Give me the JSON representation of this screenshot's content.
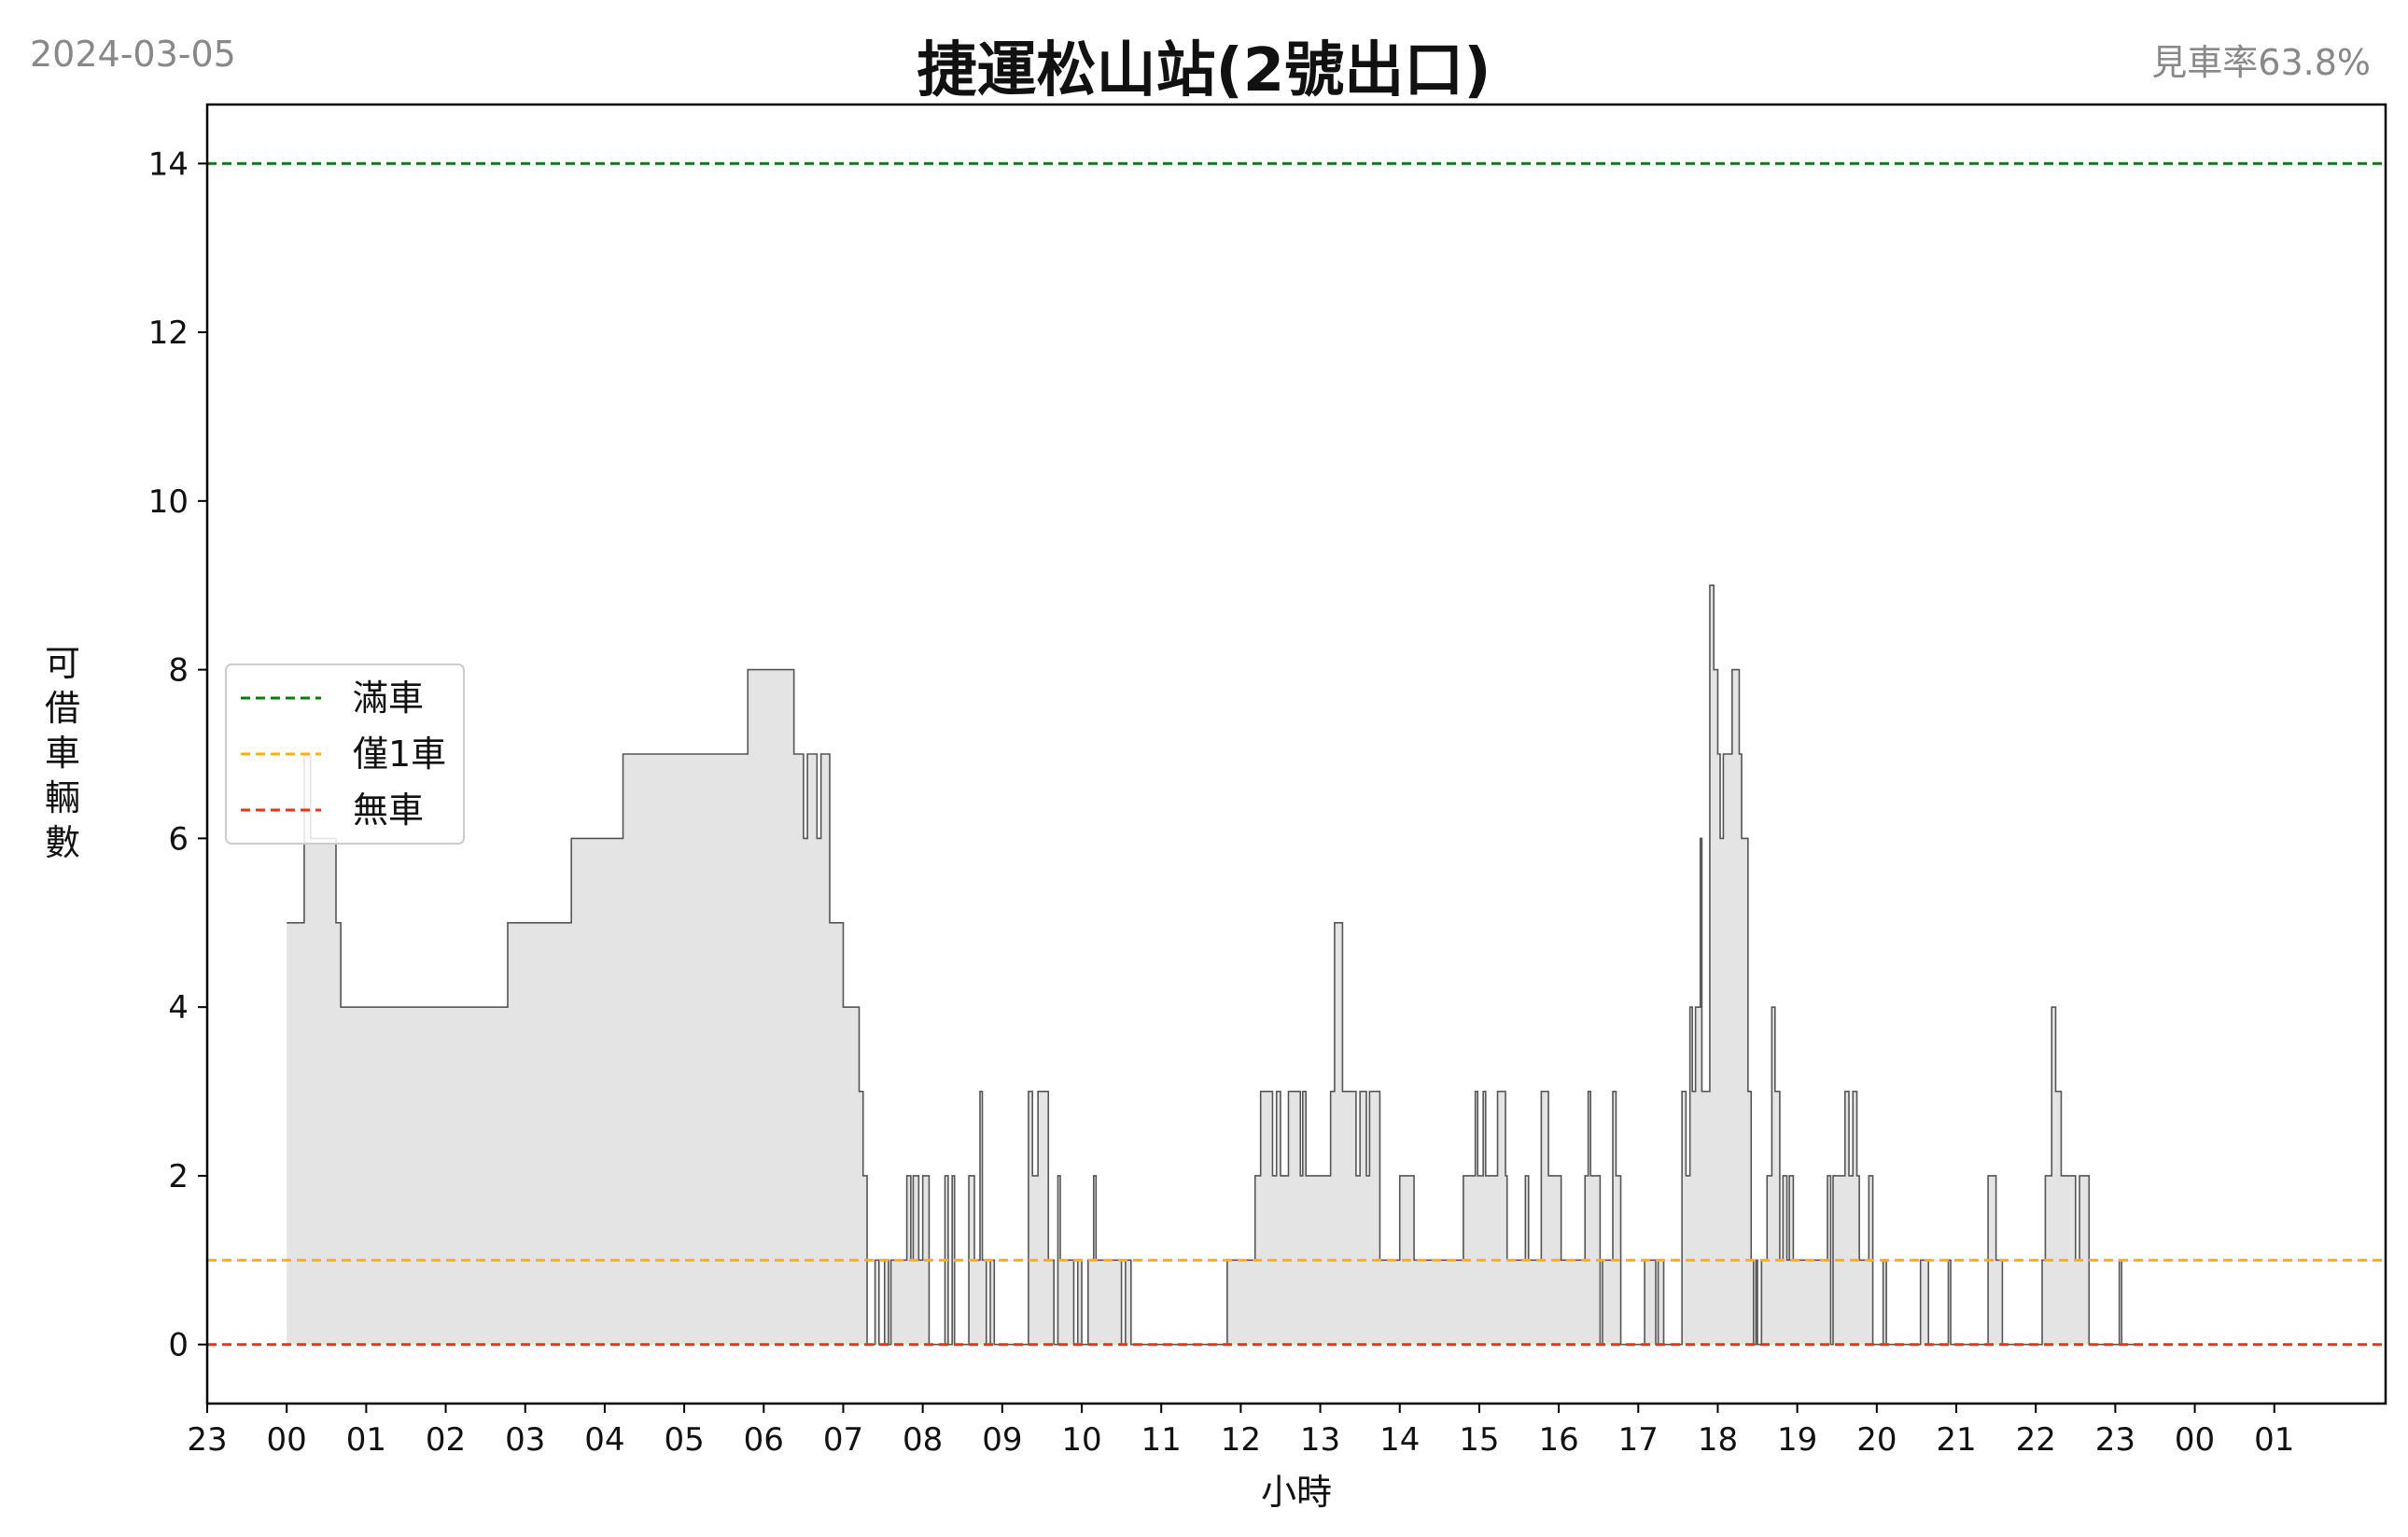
{
  "header": {
    "date": "2024-03-05",
    "title": "捷運松山站(2號出口)",
    "availability": "見車率63.8%"
  },
  "chart_data": {
    "type": "area",
    "title": "捷運松山站(2號出口)",
    "xlabel": "小時",
    "ylabel": "可借車輛數",
    "xlim": [
      -1.0,
      26.4
    ],
    "ylim": [
      -0.7,
      14.7
    ],
    "x_ticks": [
      {
        "pos": -1,
        "label": "23"
      },
      {
        "pos": 0,
        "label": "00"
      },
      {
        "pos": 1,
        "label": "01"
      },
      {
        "pos": 2,
        "label": "02"
      },
      {
        "pos": 3,
        "label": "03"
      },
      {
        "pos": 4,
        "label": "04"
      },
      {
        "pos": 5,
        "label": "05"
      },
      {
        "pos": 6,
        "label": "06"
      },
      {
        "pos": 7,
        "label": "07"
      },
      {
        "pos": 8,
        "label": "08"
      },
      {
        "pos": 9,
        "label": "09"
      },
      {
        "pos": 10,
        "label": "10"
      },
      {
        "pos": 11,
        "label": "11"
      },
      {
        "pos": 12,
        "label": "12"
      },
      {
        "pos": 13,
        "label": "13"
      },
      {
        "pos": 14,
        "label": "14"
      },
      {
        "pos": 15,
        "label": "15"
      },
      {
        "pos": 16,
        "label": "16"
      },
      {
        "pos": 17,
        "label": "17"
      },
      {
        "pos": 18,
        "label": "18"
      },
      {
        "pos": 19,
        "label": "19"
      },
      {
        "pos": 20,
        "label": "20"
      },
      {
        "pos": 21,
        "label": "21"
      },
      {
        "pos": 22,
        "label": "22"
      },
      {
        "pos": 23,
        "label": "23"
      },
      {
        "pos": 24,
        "label": "00"
      },
      {
        "pos": 25,
        "label": "01"
      }
    ],
    "y_ticks": [
      0,
      2,
      4,
      6,
      8,
      10,
      12,
      14
    ],
    "grid": false,
    "legend": {
      "position": "center-left",
      "entries": [
        "滿車",
        "僅1車",
        "無車"
      ]
    },
    "reference_lines": [
      {
        "name": "滿車",
        "value": 14,
        "color": "#008000",
        "style": "dashed"
      },
      {
        "name": "僅1車",
        "value": 1,
        "color": "#FFB300",
        "style": "dashed"
      },
      {
        "name": "無車",
        "value": 0,
        "color": "#E8341C",
        "style": "dashed"
      }
    ],
    "series": [
      {
        "style": "step-area",
        "fill_color": "#e4e4e4",
        "line_color": "#555555",
        "points": [
          [
            0.0,
            5
          ],
          [
            0.15,
            5
          ],
          [
            0.22,
            7
          ],
          [
            0.3,
            6
          ],
          [
            0.55,
            6
          ],
          [
            0.62,
            5
          ],
          [
            0.68,
            4
          ],
          [
            1.5,
            4
          ],
          [
            2.75,
            4
          ],
          [
            2.78,
            5
          ],
          [
            3.55,
            5
          ],
          [
            3.58,
            6
          ],
          [
            4.2,
            6
          ],
          [
            4.23,
            7
          ],
          [
            5.78,
            7
          ],
          [
            5.8,
            8
          ],
          [
            6.35,
            8
          ],
          [
            6.38,
            7
          ],
          [
            6.48,
            7
          ],
          [
            6.5,
            6
          ],
          [
            6.55,
            7
          ],
          [
            6.65,
            7
          ],
          [
            6.67,
            6
          ],
          [
            6.72,
            7
          ],
          [
            6.8,
            7
          ],
          [
            6.83,
            5
          ],
          [
            6.98,
            5
          ],
          [
            7.0,
            4
          ],
          [
            7.15,
            4
          ],
          [
            7.2,
            3
          ],
          [
            7.25,
            2
          ],
          [
            7.3,
            0
          ],
          [
            7.4,
            1
          ],
          [
            7.45,
            0
          ],
          [
            7.52,
            1
          ],
          [
            7.57,
            0
          ],
          [
            7.6,
            1
          ],
          [
            7.75,
            1
          ],
          [
            7.8,
            2
          ],
          [
            7.85,
            1
          ],
          [
            7.88,
            2
          ],
          [
            7.95,
            1
          ],
          [
            8.0,
            2
          ],
          [
            8.05,
            2
          ],
          [
            8.08,
            0
          ],
          [
            8.25,
            0
          ],
          [
            8.28,
            2
          ],
          [
            8.32,
            0
          ],
          [
            8.37,
            2
          ],
          [
            8.4,
            0
          ],
          [
            8.55,
            0
          ],
          [
            8.58,
            2
          ],
          [
            8.62,
            2
          ],
          [
            8.65,
            1
          ],
          [
            8.72,
            3
          ],
          [
            8.75,
            1
          ],
          [
            8.8,
            0
          ],
          [
            8.85,
            1
          ],
          [
            8.9,
            0
          ],
          [
            9.3,
            0
          ],
          [
            9.33,
            3
          ],
          [
            9.38,
            2
          ],
          [
            9.45,
            3
          ],
          [
            9.55,
            3
          ],
          [
            9.58,
            1
          ],
          [
            9.65,
            0
          ],
          [
            9.7,
            2
          ],
          [
            9.73,
            1
          ],
          [
            9.85,
            1
          ],
          [
            9.9,
            0
          ],
          [
            9.95,
            1
          ],
          [
            10.0,
            0
          ],
          [
            10.08,
            1
          ],
          [
            10.15,
            2
          ],
          [
            10.18,
            1
          ],
          [
            10.45,
            1
          ],
          [
            10.5,
            0
          ],
          [
            10.55,
            1
          ],
          [
            10.62,
            0
          ],
          [
            11.8,
            0
          ],
          [
            11.83,
            1
          ],
          [
            12.15,
            1
          ],
          [
            12.18,
            2
          ],
          [
            12.25,
            3
          ],
          [
            12.38,
            3
          ],
          [
            12.4,
            2
          ],
          [
            12.45,
            3
          ],
          [
            12.5,
            2
          ],
          [
            12.55,
            2
          ],
          [
            12.6,
            3
          ],
          [
            12.72,
            3
          ],
          [
            12.75,
            2
          ],
          [
            12.78,
            3
          ],
          [
            12.82,
            2
          ],
          [
            13.1,
            2
          ],
          [
            13.13,
            3
          ],
          [
            13.18,
            5
          ],
          [
            13.25,
            5
          ],
          [
            13.28,
            3
          ],
          [
            13.4,
            3
          ],
          [
            13.45,
            2
          ],
          [
            13.5,
            3
          ],
          [
            13.55,
            3
          ],
          [
            13.58,
            2
          ],
          [
            13.62,
            3
          ],
          [
            13.7,
            3
          ],
          [
            13.75,
            1
          ],
          [
            13.97,
            1
          ],
          [
            14.0,
            2
          ],
          [
            14.15,
            2
          ],
          [
            14.18,
            1
          ],
          [
            14.78,
            1
          ],
          [
            14.8,
            2
          ],
          [
            14.92,
            2
          ],
          [
            14.95,
            3
          ],
          [
            14.98,
            2
          ],
          [
            15.05,
            3
          ],
          [
            15.08,
            2
          ],
          [
            15.2,
            2
          ],
          [
            15.23,
            3
          ],
          [
            15.3,
            3
          ],
          [
            15.33,
            2
          ],
          [
            15.35,
            1
          ],
          [
            15.55,
            1
          ],
          [
            15.58,
            2
          ],
          [
            15.62,
            1
          ],
          [
            15.75,
            1
          ],
          [
            15.78,
            3
          ],
          [
            15.85,
            3
          ],
          [
            15.87,
            2
          ],
          [
            16.0,
            2
          ],
          [
            16.03,
            1
          ],
          [
            16.3,
            1
          ],
          [
            16.33,
            2
          ],
          [
            16.37,
            3
          ],
          [
            16.4,
            2
          ],
          [
            16.5,
            2
          ],
          [
            16.52,
            0
          ],
          [
            16.55,
            1
          ],
          [
            16.65,
            1
          ],
          [
            16.68,
            3
          ],
          [
            16.72,
            2
          ],
          [
            16.78,
            0
          ],
          [
            17.05,
            0
          ],
          [
            17.08,
            1
          ],
          [
            17.2,
            1
          ],
          [
            17.22,
            0
          ],
          [
            17.25,
            1
          ],
          [
            17.28,
            1
          ],
          [
            17.32,
            0
          ],
          [
            17.5,
            0
          ],
          [
            17.55,
            3
          ],
          [
            17.6,
            2
          ],
          [
            17.65,
            4
          ],
          [
            17.68,
            3
          ],
          [
            17.72,
            4
          ],
          [
            17.78,
            6
          ],
          [
            17.8,
            3
          ],
          [
            17.85,
            3
          ],
          [
            17.9,
            9
          ],
          [
            17.95,
            8
          ],
          [
            18.0,
            7
          ],
          [
            18.03,
            6
          ],
          [
            18.07,
            7
          ],
          [
            18.15,
            7
          ],
          [
            18.18,
            8
          ],
          [
            18.25,
            8
          ],
          [
            18.27,
            7
          ],
          [
            18.3,
            6
          ],
          [
            18.38,
            3
          ],
          [
            18.42,
            1
          ],
          [
            18.45,
            0
          ],
          [
            18.48,
            1
          ],
          [
            18.5,
            0
          ],
          [
            18.55,
            1
          ],
          [
            18.62,
            2
          ],
          [
            18.68,
            4
          ],
          [
            18.72,
            3
          ],
          [
            18.78,
            1
          ],
          [
            18.82,
            2
          ],
          [
            18.87,
            1
          ],
          [
            18.9,
            2
          ],
          [
            18.95,
            1
          ],
          [
            19.35,
            1
          ],
          [
            19.38,
            2
          ],
          [
            19.42,
            0
          ],
          [
            19.45,
            2
          ],
          [
            19.55,
            2
          ],
          [
            19.6,
            3
          ],
          [
            19.65,
            2
          ],
          [
            19.7,
            3
          ],
          [
            19.75,
            2
          ],
          [
            19.78,
            1
          ],
          [
            19.85,
            1
          ],
          [
            19.9,
            2
          ],
          [
            19.95,
            0
          ],
          [
            20.05,
            0
          ],
          [
            20.08,
            1
          ],
          [
            20.12,
            0
          ],
          [
            20.5,
            0
          ],
          [
            20.55,
            1
          ],
          [
            20.62,
            1
          ],
          [
            20.65,
            0
          ],
          [
            20.85,
            0
          ],
          [
            20.9,
            1
          ],
          [
            20.93,
            0
          ],
          [
            21.35,
            0
          ],
          [
            21.4,
            2
          ],
          [
            21.48,
            2
          ],
          [
            21.5,
            1
          ],
          [
            21.58,
            0
          ],
          [
            22.05,
            0
          ],
          [
            22.08,
            1
          ],
          [
            22.12,
            2
          ],
          [
            22.2,
            4
          ],
          [
            22.25,
            3
          ],
          [
            22.32,
            2
          ],
          [
            22.45,
            2
          ],
          [
            22.5,
            1
          ],
          [
            22.55,
            2
          ],
          [
            22.62,
            2
          ],
          [
            22.67,
            0
          ],
          [
            23.0,
            0
          ],
          [
            23.05,
            1
          ],
          [
            23.08,
            0
          ],
          [
            23.3,
            0
          ]
        ]
      }
    ]
  }
}
